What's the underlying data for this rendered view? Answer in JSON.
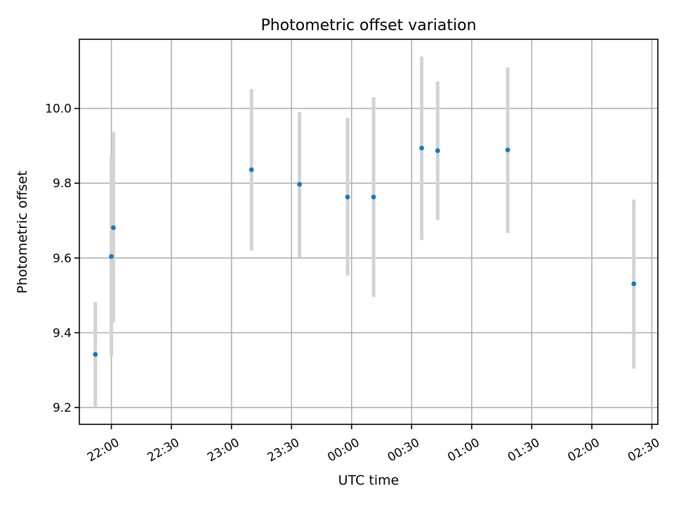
{
  "chart_data": {
    "type": "scatter",
    "title": "Photometric offset variation",
    "xlabel": "UTC time",
    "ylabel": "Photometric offset",
    "x_axis_type": "time",
    "xlim": [
      "21:44",
      "02:33"
    ],
    "ylim": [
      9.155,
      10.185
    ],
    "x_ticks": [
      "22:00",
      "22:30",
      "23:00",
      "23:30",
      "00:00",
      "00:30",
      "01:00",
      "01:30",
      "02:00",
      "02:30"
    ],
    "y_ticks": [
      9.2,
      9.4,
      9.6,
      9.8,
      10.0
    ],
    "y_tick_labels": [
      "9.2",
      "9.4",
      "9.6",
      "9.8",
      "10.0"
    ],
    "grid": true,
    "legend": "none",
    "colors": {
      "points": "#1f77b4",
      "errorbars": "#d3d3d3",
      "grid": "#b0b0b0"
    },
    "points": [
      {
        "x": "21:52",
        "y": 9.342,
        "err_low": 9.2,
        "err_high": 9.482
      },
      {
        "x": "22:00",
        "y": 9.604,
        "err_low": 9.337,
        "err_high": 9.871
      },
      {
        "x": "22:01",
        "y": 9.681,
        "err_low": 9.428,
        "err_high": 9.937
      },
      {
        "x": "23:10",
        "y": 9.836,
        "err_low": 9.62,
        "err_high": 10.052
      },
      {
        "x": "23:34",
        "y": 9.797,
        "err_low": 9.601,
        "err_high": 9.99
      },
      {
        "x": "23:58",
        "y": 9.763,
        "err_low": 9.553,
        "err_high": 9.975
      },
      {
        "x": "00:11",
        "y": 9.763,
        "err_low": 9.496,
        "err_high": 10.03
      },
      {
        "x": "00:35",
        "y": 9.894,
        "err_low": 9.648,
        "err_high": 10.139
      },
      {
        "x": "00:43",
        "y": 9.887,
        "err_low": 9.702,
        "err_high": 10.072
      },
      {
        "x": "01:18",
        "y": 9.889,
        "err_low": 9.667,
        "err_high": 10.11
      },
      {
        "x": "02:21",
        "y": 9.531,
        "err_low": 9.304,
        "err_high": 9.756
      }
    ]
  }
}
